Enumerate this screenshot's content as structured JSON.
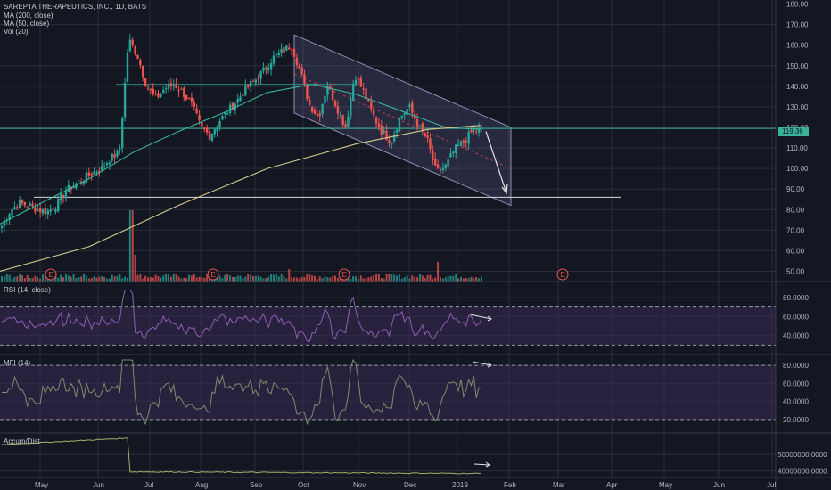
{
  "header": {
    "symbol": "SAREPTA THERAPEUTICS, INC., 1D, BATS",
    "ma200": "MA (200, close)",
    "ma50": "MA (50, close)",
    "vol": "Vol (20)"
  },
  "price_pane": {
    "last_price_label": "119.36",
    "earnings_marker": "E"
  },
  "rsi_pane": {
    "title": "RSI (14, close)"
  },
  "mfi_pane": {
    "title": "MFI (14)"
  },
  "ad_pane": {
    "title": "Accum/Dist"
  },
  "colors": {
    "bg": "#131722",
    "grid": "#2a2e39",
    "up": "#26a69a",
    "down": "#ef5350",
    "ma50": "#3bb39a",
    "ma200": "#d4c98a",
    "osc": "#8e5db5",
    "band": "#3a2a55",
    "channel": "#8b8fb5",
    "hline": "#d9d9d9",
    "mfi_band": "#3a2a55"
  },
  "chart_data": [
    {
      "type": "candlestick",
      "title": "SAREPTA THERAPEUTICS, INC., 1D, BATS",
      "y_ticks": [
        "180.00",
        "170.00",
        "160.00",
        "150.00",
        "140.00",
        "130.00",
        "120.00",
        "110.00",
        "100.00",
        "90.00",
        "80.00",
        "70.00",
        "60.00",
        "50.00"
      ],
      "ylim": [
        45,
        182
      ],
      "x_ticks": [
        "May",
        "Jun",
        "Jul",
        "Aug",
        "Sep",
        "Oct",
        "Nov",
        "Dec",
        "2019",
        "Feb",
        "Mar",
        "Apr",
        "May",
        "Jun",
        "Jul"
      ],
      "close_path": [
        [
          "Apr",
          72
        ],
        [
          "Apr",
          80
        ],
        [
          "Apr",
          83
        ],
        [
          "Apr",
          82
        ],
        [
          "May",
          80
        ],
        [
          "May",
          79
        ],
        [
          "May",
          82
        ],
        [
          "May",
          89
        ],
        [
          "May",
          92
        ],
        [
          "May",
          95
        ],
        [
          "Jun",
          98
        ],
        [
          "Jun",
          100
        ],
        [
          "Jun",
          105
        ],
        [
          "Jun",
          108
        ],
        [
          "Jun",
          163
        ],
        [
          "Jul",
          155
        ],
        [
          "Jul",
          140
        ],
        [
          "Jul",
          134
        ],
        [
          "Jul",
          139
        ],
        [
          "Jul",
          141
        ],
        [
          "Jul",
          137
        ],
        [
          "Aug",
          131
        ],
        [
          "Aug",
          120
        ],
        [
          "Aug",
          116
        ],
        [
          "Aug",
          123
        ],
        [
          "Aug",
          128
        ],
        [
          "Aug",
          133
        ],
        [
          "Sep",
          139
        ],
        [
          "Sep",
          143
        ],
        [
          "Sep",
          148
        ],
        [
          "Sep",
          154
        ],
        [
          "Sep",
          157
        ],
        [
          "Oct",
          160
        ],
        [
          "Oct",
          147
        ],
        [
          "Oct",
          131
        ],
        [
          "Oct",
          125
        ],
        [
          "Oct",
          141
        ],
        [
          "Oct",
          130
        ],
        [
          "Oct",
          120
        ],
        [
          "Nov",
          146
        ],
        [
          "Nov",
          137
        ],
        [
          "Nov",
          126
        ],
        [
          "Nov",
          118
        ],
        [
          "Nov",
          113
        ],
        [
          "Dec",
          125
        ],
        [
          "Dec",
          130
        ],
        [
          "Dec",
          121
        ],
        [
          "Dec",
          114
        ],
        [
          "Dec",
          98
        ],
        [
          "Dec",
          101
        ],
        [
          "Dec",
          109
        ],
        [
          "2019",
          113
        ],
        [
          "2019",
          118
        ],
        [
          "2019",
          119
        ]
      ],
      "ma50_points": [
        [
          0,
          73
        ],
        [
          50,
          84
        ],
        [
          100,
          95
        ],
        [
          150,
          108
        ],
        [
          200,
          118
        ],
        [
          250,
          127
        ],
        [
          300,
          137
        ],
        [
          350,
          141
        ],
        [
          400,
          136
        ],
        [
          450,
          128
        ],
        [
          500,
          120
        ],
        [
          540,
          119
        ]
      ],
      "ma200_points": [
        [
          0,
          50
        ],
        [
          100,
          62
        ],
        [
          200,
          82
        ],
        [
          300,
          100
        ],
        [
          400,
          112
        ],
        [
          480,
          119
        ],
        [
          540,
          121
        ]
      ],
      "channel": {
        "upper": [
          [
            330,
            165
          ],
          [
            573,
            120
          ]
        ],
        "lower": [
          [
            330,
            127
          ],
          [
            573,
            82
          ]
        ],
        "mid": [
          [
            330,
            146
          ],
          [
            573,
            100
          ]
        ]
      },
      "horizontal_lines": [
        {
          "y": 119.5,
          "color": "ma50"
        },
        {
          "y": 86,
          "color": "hline"
        },
        {
          "y": 141,
          "color": "ma50"
        }
      ],
      "earnings_dates": [
        "May",
        "Aug",
        "Nov",
        "Mar"
      ]
    },
    {
      "type": "line",
      "title": "RSI (14, close)",
      "y_ticks": [
        "80.0000",
        "60.0000",
        "40.0000"
      ],
      "ylim": [
        20,
        95
      ],
      "band": [
        30,
        70
      ]
    },
    {
      "type": "line",
      "title": "MFI (14)",
      "y_ticks": [
        "80.0000",
        "60.0000",
        "40.0000",
        "20.0000"
      ],
      "ylim": [
        5,
        90
      ],
      "band": [
        20,
        80
      ]
    },
    {
      "type": "line",
      "title": "Accum/Dist",
      "y_ticks": [
        "50000000.0000",
        "40000000.0000"
      ],
      "ylim": [
        36000000,
        62000000
      ]
    }
  ]
}
